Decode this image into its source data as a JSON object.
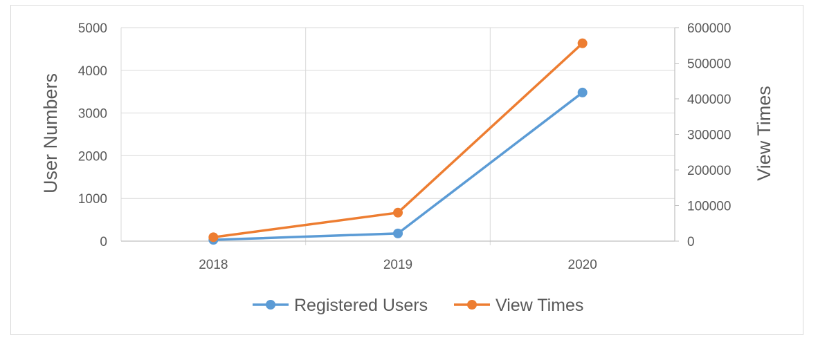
{
  "chart_data": {
    "type": "line",
    "categories": [
      "2018",
      "2019",
      "2020"
    ],
    "left_axis": {
      "label": "User Numbers",
      "ylim": [
        0,
        5000
      ],
      "ticks": [
        "0",
        "1000",
        "2000",
        "3000",
        "4000",
        "5000"
      ]
    },
    "right_axis": {
      "label": "View Times",
      "ylim": [
        0,
        600000
      ],
      "ticks": [
        "0",
        "100000",
        "200000",
        "300000",
        "400000",
        "500000",
        "600000"
      ]
    },
    "series": [
      {
        "name": "Registered Users",
        "axis": "left",
        "color": "#5b9bd5",
        "values": [
          30,
          180,
          3480
        ]
      },
      {
        "name": "View Times",
        "axis": "right",
        "color": "#ed7d31",
        "values": [
          11000,
          80000,
          556000
        ]
      }
    ],
    "grid": true,
    "legend_position": "bottom"
  }
}
